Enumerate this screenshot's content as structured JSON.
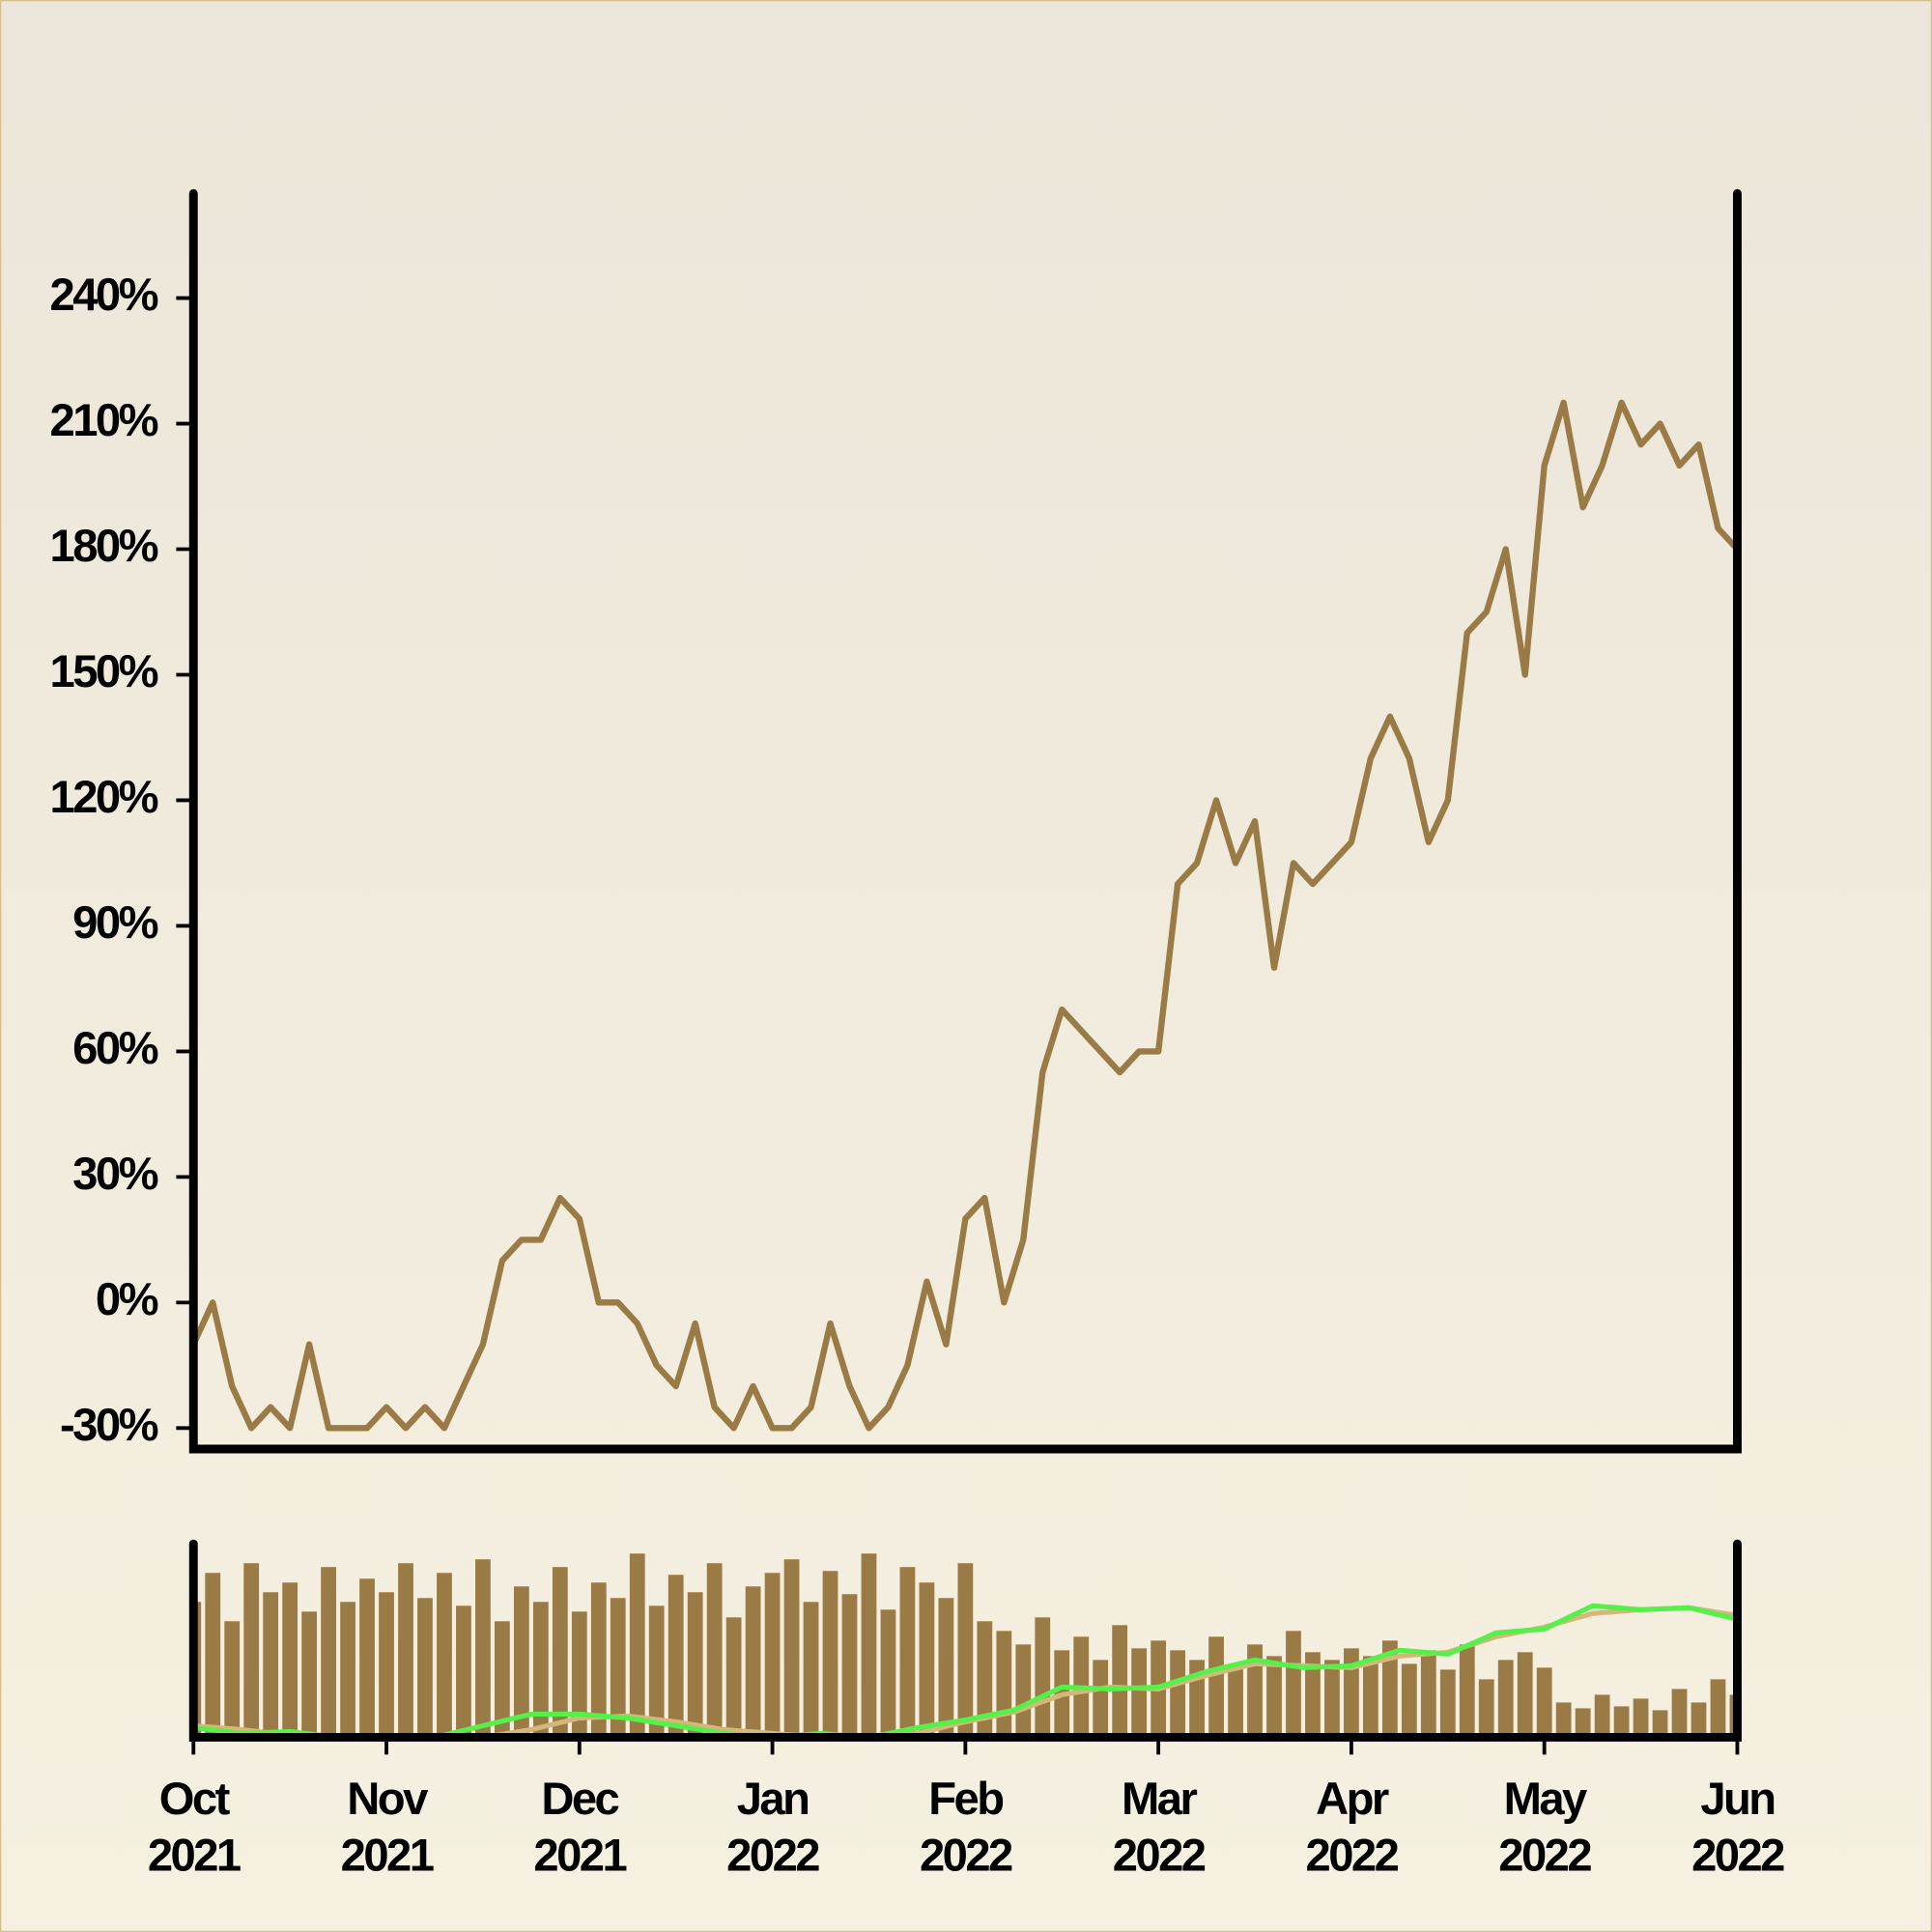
{
  "chart_data": [
    {
      "type": "line",
      "xlim": [
        0,
        8
      ],
      "ylim": [
        -35,
        265
      ],
      "yticks": [
        {
          "value": -30,
          "label": "-30%"
        },
        {
          "value": 0,
          "label": "0%"
        },
        {
          "value": 30,
          "label": "30%"
        },
        {
          "value": 60,
          "label": "60%"
        },
        {
          "value": 90,
          "label": "90%"
        },
        {
          "value": 120,
          "label": "120%"
        },
        {
          "value": 150,
          "label": "150%"
        },
        {
          "value": 180,
          "label": "180%"
        },
        {
          "value": 210,
          "label": "210%"
        },
        {
          "value": 240,
          "label": "240%"
        }
      ],
      "series": [
        {
          "color": "#9b7b45",
          "x": [
            0,
            0.1,
            0.2,
            0.3,
            0.4,
            0.5,
            0.6,
            0.7,
            0.8,
            0.9,
            1,
            1.1,
            1.2,
            1.3,
            1.4,
            1.5,
            1.6,
            1.7,
            1.8,
            1.9,
            2,
            2.1,
            2.2,
            2.3,
            2.4,
            2.5,
            2.6,
            2.7,
            2.8,
            2.9,
            3,
            3.1,
            3.2,
            3.3,
            3.4,
            3.5,
            3.6,
            3.7,
            3.8,
            3.9,
            4,
            4.1,
            4.2,
            4.3,
            4.4,
            4.5,
            4.6,
            4.7,
            4.8,
            4.9,
            5,
            5.1,
            5.2,
            5.3,
            5.4,
            5.5,
            5.6,
            5.7,
            5.8,
            5.9,
            6,
            6.1,
            6.2,
            6.3,
            6.4,
            6.5,
            6.6,
            6.7,
            6.8,
            6.9,
            7,
            7.1,
            7.2,
            7.3,
            7.4,
            7.5,
            7.6,
            7.7,
            7.8,
            7.9,
            8
          ],
          "values": [
            -10,
            0,
            -20,
            -30,
            -25,
            -30,
            -10,
            -30,
            -30,
            -30,
            -25,
            -30,
            -25,
            -30,
            -20,
            -10,
            10,
            15,
            15,
            25,
            20,
            0,
            0,
            -5,
            -15,
            -20,
            -5,
            -25,
            -30,
            -20,
            -30,
            -30,
            -25,
            -5,
            -20,
            -30,
            -25,
            -15,
            5,
            -10,
            20,
            25,
            0,
            15,
            55,
            70,
            65,
            60,
            55,
            60,
            60,
            100,
            105,
            120,
            105,
            115,
            80,
            105,
            100,
            105,
            110,
            130,
            140,
            130,
            110,
            120,
            160,
            165,
            180,
            150,
            200,
            215,
            190,
            200,
            215,
            205,
            210,
            200,
            205,
            185,
            180
          ]
        }
      ]
    },
    {
      "type": "bar",
      "xlim": [
        0,
        8
      ],
      "ylim": [
        0,
        100
      ],
      "color": "#9b7b45",
      "xticks": [
        {
          "value": 0,
          "label": "Oct 2021"
        },
        {
          "value": 1,
          "label": "Nov 2021"
        },
        {
          "value": 2,
          "label": "Dec 2021"
        },
        {
          "value": 3,
          "label": "Jan 2022"
        },
        {
          "value": 4,
          "label": "Feb 2022"
        },
        {
          "value": 5,
          "label": "Mar 2022"
        },
        {
          "value": 6,
          "label": "Apr 2022"
        },
        {
          "value": 7,
          "label": "May 2022"
        },
        {
          "value": 8,
          "label": "Jun 2022"
        }
      ],
      "x": [
        0,
        0.1,
        0.2,
        0.3,
        0.4,
        0.5,
        0.6,
        0.7,
        0.8,
        0.9,
        1,
        1.1,
        1.2,
        1.3,
        1.4,
        1.5,
        1.6,
        1.7,
        1.8,
        1.9,
        2,
        2.1,
        2.2,
        2.3,
        2.4,
        2.5,
        2.6,
        2.7,
        2.8,
        2.9,
        3,
        3.1,
        3.2,
        3.3,
        3.4,
        3.5,
        3.6,
        3.7,
        3.8,
        3.9,
        4,
        4.1,
        4.2,
        4.3,
        4.4,
        4.5,
        4.6,
        4.7,
        4.8,
        4.9,
        5,
        5.1,
        5.2,
        5.3,
        5.4,
        5.5,
        5.6,
        5.7,
        5.8,
        5.9,
        6,
        6.1,
        6.2,
        6.3,
        6.4,
        6.5,
        6.6,
        6.7,
        6.8,
        6.9,
        7,
        7.1,
        7.2,
        7.3,
        7.4,
        7.5,
        7.6,
        7.7,
        7.8,
        7.9,
        8
      ],
      "values": [
        70,
        85,
        60,
        90,
        75,
        80,
        65,
        88,
        70,
        82,
        75,
        90,
        72,
        85,
        68,
        92,
        60,
        78,
        70,
        88,
        65,
        80,
        72,
        95,
        68,
        84,
        75,
        90,
        62,
        78,
        85,
        92,
        70,
        86,
        74,
        95,
        66,
        88,
        80,
        72,
        90,
        60,
        55,
        48,
        62,
        45,
        52,
        40,
        58,
        46,
        50,
        45,
        40,
        52,
        38,
        48,
        42,
        55,
        44,
        40,
        46,
        42,
        50,
        38,
        45,
        35,
        48,
        30,
        40,
        44,
        36,
        18,
        15,
        22,
        16,
        20,
        14,
        25,
        18,
        30,
        22
      ],
      "lines": [
        {
          "color": "#d4b87a",
          "x": [
            0,
            0.25,
            0.5,
            0.75,
            1,
            1.25,
            1.5,
            1.75,
            2,
            2.25,
            2.5,
            2.75,
            3,
            3.25,
            3.5,
            3.75,
            4,
            4.25,
            4.5,
            4.75,
            5,
            5.25,
            5.5,
            5.75,
            6,
            6.25,
            6.5,
            6.75,
            7,
            7.25,
            7.5,
            7.75,
            8
          ],
          "values": [
            6,
            4,
            1,
            0,
            0,
            0,
            0,
            4,
            10,
            11,
            8,
            4,
            2,
            0,
            0,
            2,
            8,
            13,
            22,
            26,
            25,
            32,
            38,
            37,
            36,
            42,
            44,
            52,
            57,
            64,
            66,
            67,
            63
          ]
        },
        {
          "color": "#55f04a",
          "x": [
            0,
            0.25,
            0.5,
            0.75,
            1,
            1.25,
            1.5,
            1.75,
            2,
            2.25,
            2.5,
            2.75,
            3,
            3.25,
            3.5,
            3.75,
            4,
            4.25,
            4.5,
            4.75,
            5,
            5.25,
            5.5,
            5.75,
            6,
            6.25,
            6.5,
            6.75,
            7,
            7.25,
            7.5,
            7.75,
            8
          ],
          "values": [
            5,
            2,
            3,
            0,
            0,
            0,
            6,
            12,
            12,
            10,
            6,
            2,
            0,
            2,
            0,
            5,
            9,
            14,
            26,
            25,
            26,
            34,
            40,
            36,
            37,
            45,
            43,
            54,
            56,
            68,
            66,
            67,
            61
          ]
        }
      ]
    }
  ]
}
